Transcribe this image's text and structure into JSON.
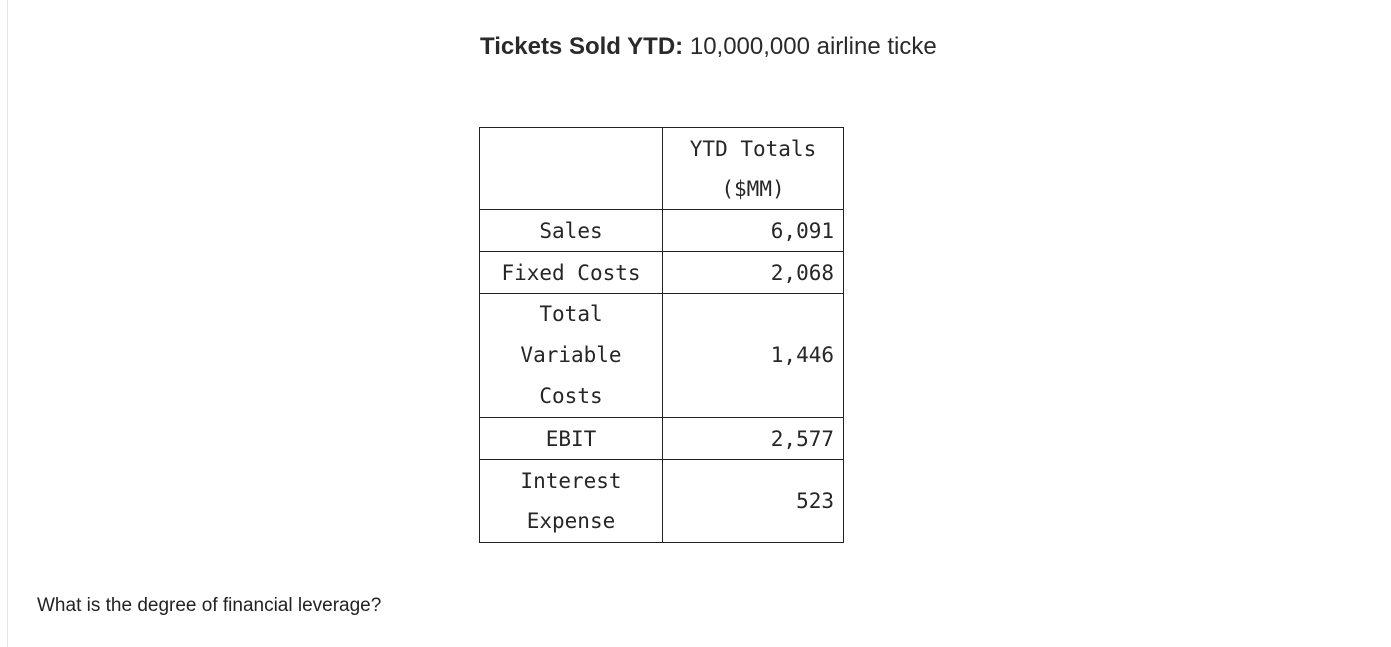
{
  "headline": {
    "label": "Tickets Sold YTD:",
    "value": "10,000,000 airline ticke"
  },
  "table": {
    "header_line1": "YTD Totals",
    "header_line2": "($MM)",
    "rows": [
      {
        "label": "Sales",
        "value": "6,091"
      },
      {
        "label": "Fixed Costs",
        "value": "2,068"
      },
      {
        "label_lines": [
          "Total",
          "Variable",
          "Costs"
        ],
        "value": "1,446"
      },
      {
        "label": "EBIT",
        "value": "2,577"
      },
      {
        "label_lines": [
          "Interest",
          "Expense"
        ],
        "value": "523"
      }
    ]
  },
  "question": "What is the degree of financial leverage?"
}
